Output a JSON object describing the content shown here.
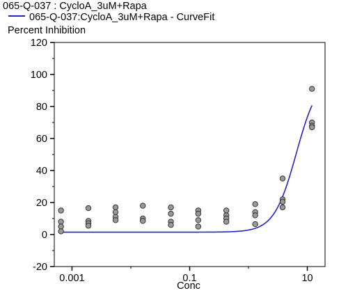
{
  "legend": {
    "data_series": "065-Q-037  : CycloA_3uM+Rapa",
    "fit_series": "065-Q-037:CycloA_3uM+Rapa - CurveFit"
  },
  "colors": {
    "fit_line": "#2222cc",
    "point_fill": "#999999",
    "point_stroke": "#333333"
  },
  "chart_data": {
    "type": "scatter",
    "title": "",
    "xlabel": "Conc",
    "ylabel": "Percent Inhibition",
    "x_scale": "log",
    "xlim": [
      0.0005,
      20
    ],
    "ylim": [
      -20,
      120
    ],
    "x_ticks": [
      0.001,
      0.1,
      10
    ],
    "x_tick_labels": [
      "0.001",
      "0.1",
      "10"
    ],
    "y_ticks": [
      -20,
      0,
      20,
      40,
      60,
      80,
      100,
      120
    ],
    "y_tick_labels": [
      "-20",
      "0",
      "20",
      "40",
      "60",
      "80",
      "100",
      "120"
    ],
    "grid": false,
    "series": [
      {
        "name": "065-Q-037  : CycloA_3uM+Rapa",
        "kind": "points",
        "points": [
          [
            0.00065,
            15
          ],
          [
            0.00065,
            8
          ],
          [
            0.00065,
            5
          ],
          [
            0.00065,
            2
          ],
          [
            0.0019,
            16.5
          ],
          [
            0.0019,
            8.5
          ],
          [
            0.0019,
            7
          ],
          [
            0.0019,
            5.5
          ],
          [
            0.0055,
            17
          ],
          [
            0.0055,
            14
          ],
          [
            0.0055,
            11
          ],
          [
            0.0055,
            9
          ],
          [
            0.016,
            18
          ],
          [
            0.016,
            10
          ],
          [
            0.016,
            8.5
          ],
          [
            0.048,
            17
          ],
          [
            0.048,
            13
          ],
          [
            0.048,
            8
          ],
          [
            0.048,
            6
          ],
          [
            0.14,
            15
          ],
          [
            0.14,
            13
          ],
          [
            0.14,
            9
          ],
          [
            0.14,
            5
          ],
          [
            0.42,
            15
          ],
          [
            0.42,
            12
          ],
          [
            0.42,
            10
          ],
          [
            0.42,
            8
          ],
          [
            1.3,
            19
          ],
          [
            1.3,
            14
          ],
          [
            1.3,
            12
          ],
          [
            1.3,
            6.5
          ],
          [
            3.8,
            35
          ],
          [
            3.8,
            22
          ],
          [
            3.8,
            20.5
          ],
          [
            3.8,
            17
          ],
          [
            12,
            91
          ],
          [
            12,
            70
          ],
          [
            12,
            68
          ],
          [
            12,
            67
          ]
        ]
      },
      {
        "name": "065-Q-037:CycloA_3uM+Rapa - CurveFit",
        "kind": "line",
        "model": "four-parameter logistic",
        "bottom": 1.5,
        "top": 100,
        "ec50": 6.5,
        "hill": 2.3,
        "x_range": [
          0.00065,
          12
        ]
      }
    ]
  }
}
